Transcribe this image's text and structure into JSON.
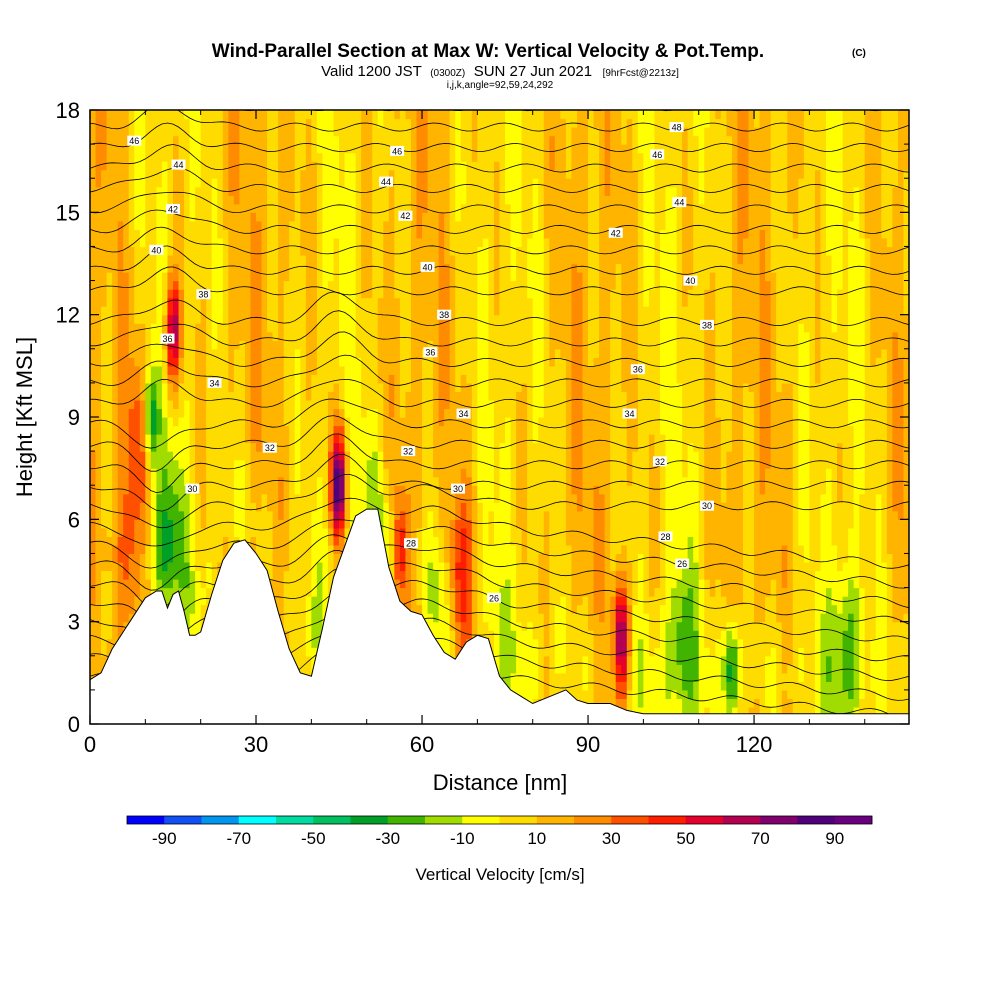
{
  "title": {
    "main": "Wind-Parallel Section at Max W: Vertical Velocity & Pot.Temp.",
    "copyright": "(C)",
    "valid_prefix": "Valid 1200 JST",
    "valid_utc": "(0300Z)",
    "valid_date": "SUN 27 Jun 2021",
    "forecast": "[9hrFcst@2213z]",
    "indices": "i,j,k,angle=92,59,24,292"
  },
  "chart_data": {
    "type": "heatmap",
    "xlabel": "Distance [nm]",
    "ylabel": "Height [Kft MSL]",
    "xlim": [
      0,
      148
    ],
    "ylim": [
      0,
      18
    ],
    "x_ticks": [
      "0",
      "30",
      "60",
      "90",
      "120"
    ],
    "y_ticks": [
      "0",
      "3",
      "6",
      "9",
      "12",
      "15",
      "18"
    ],
    "colorbar": {
      "label": "Vertical Velocity [cm/s]",
      "range": [
        -100,
        100
      ],
      "tick_labels": [
        "-90",
        "-70",
        "-50",
        "-30",
        "-10",
        "10",
        "30",
        "50",
        "70",
        "90"
      ],
      "colors": [
        "#0000ff",
        "#1050f5",
        "#0096f0",
        "#00ffff",
        "#00dca0",
        "#00c060",
        "#00a028",
        "#40b400",
        "#a0dc00",
        "#ffff00",
        "#ffdc00",
        "#ffb400",
        "#ff8c00",
        "#ff5000",
        "#ff1e00",
        "#e6002d",
        "#b40050",
        "#80006e",
        "#50007a",
        "#6a0080"
      ]
    },
    "terrain": [
      [
        0,
        1.3
      ],
      [
        2,
        1.5
      ],
      [
        4,
        2.2
      ],
      [
        6,
        2.7
      ],
      [
        8,
        3.2
      ],
      [
        10,
        3.7
      ],
      [
        12,
        3.9
      ],
      [
        13,
        3.9
      ],
      [
        14,
        3.4
      ],
      [
        15,
        3.8
      ],
      [
        16,
        3.9
      ],
      [
        17,
        3.3
      ],
      [
        18,
        2.6
      ],
      [
        19,
        2.6
      ],
      [
        20,
        2.7
      ],
      [
        22,
        3.8
      ],
      [
        24,
        4.8
      ],
      [
        26,
        5.3
      ],
      [
        28,
        5.4
      ],
      [
        30,
        5.0
      ],
      [
        32,
        4.5
      ],
      [
        34,
        3.3
      ],
      [
        36,
        2.2
      ],
      [
        38,
        1.5
      ],
      [
        40,
        1.4
      ],
      [
        42,
        2.8
      ],
      [
        44,
        4.3
      ],
      [
        46,
        5.2
      ],
      [
        48,
        6.1
      ],
      [
        50,
        6.3
      ],
      [
        52,
        6.3
      ],
      [
        54,
        4.6
      ],
      [
        56,
        3.6
      ],
      [
        58,
        3.3
      ],
      [
        60,
        3.2
      ],
      [
        62,
        2.6
      ],
      [
        64,
        2.1
      ],
      [
        66,
        1.9
      ],
      [
        68,
        2.4
      ],
      [
        70,
        2.6
      ],
      [
        72,
        2.5
      ],
      [
        74,
        1.4
      ],
      [
        76,
        1.0
      ],
      [
        78,
        0.8
      ],
      [
        80,
        0.6
      ],
      [
        83,
        0.8
      ],
      [
        86,
        1.0
      ],
      [
        88,
        0.7
      ],
      [
        90,
        0.6
      ],
      [
        94,
        0.6
      ],
      [
        97,
        0.4
      ],
      [
        100,
        0.3
      ],
      [
        148,
        0.3
      ]
    ],
    "w_features": [
      {
        "x": 11,
        "z": 9,
        "w": -55
      },
      {
        "x": 15,
        "z": 11.5,
        "w": 65
      },
      {
        "x": 45,
        "z": 7,
        "w": 90
      },
      {
        "x": 96,
        "z": 2.5,
        "w": 70
      },
      {
        "x": 116,
        "z": 1.5,
        "w": -50
      },
      {
        "x": 7,
        "z": 4.5,
        "w": 35
      },
      {
        "x": 56,
        "z": 5,
        "w": 45
      },
      {
        "x": 67,
        "z": 4,
        "w": 40
      },
      {
        "x": 9,
        "z": 8.5,
        "w": 30
      },
      {
        "x": 14,
        "z": 5.5,
        "w": -30
      },
      {
        "x": 53,
        "z": 4.5,
        "w": -20
      },
      {
        "x": 63,
        "z": 3.5,
        "w": -20
      },
      {
        "x": 107,
        "z": 2.5,
        "w": -25
      },
      {
        "x": 137,
        "z": 2.5,
        "w": -25
      }
    ],
    "theta_labels": [
      {
        "text": "46",
        "x": 8,
        "z": 17.1
      },
      {
        "text": "44",
        "x": 16,
        "z": 16.4
      },
      {
        "text": "42",
        "x": 15,
        "z": 15.1
      },
      {
        "text": "40",
        "x": 12,
        "z": 13.9
      },
      {
        "text": "38",
        "x": 20.5,
        "z": 12.6
      },
      {
        "text": "36",
        "x": 14,
        "z": 11.3
      },
      {
        "text": "34",
        "x": 22.5,
        "z": 10.0
      },
      {
        "text": "32",
        "x": 32.5,
        "z": 8.1
      },
      {
        "text": "30",
        "x": 18.5,
        "z": 6.9
      },
      {
        "text": "46",
        "x": 55.5,
        "z": 16.8
      },
      {
        "text": "44",
        "x": 53.5,
        "z": 15.9
      },
      {
        "text": "42",
        "x": 57,
        "z": 14.9
      },
      {
        "text": "40",
        "x": 61,
        "z": 13.4
      },
      {
        "text": "38",
        "x": 64,
        "z": 12.0
      },
      {
        "text": "36",
        "x": 61.5,
        "z": 10.9
      },
      {
        "text": "34",
        "x": 67.5,
        "z": 9.1
      },
      {
        "text": "32",
        "x": 57.5,
        "z": 8.0
      },
      {
        "text": "30",
        "x": 66.5,
        "z": 6.9
      },
      {
        "text": "28",
        "x": 58,
        "z": 5.3
      },
      {
        "text": "26",
        "x": 73,
        "z": 3.7
      },
      {
        "text": "48",
        "x": 106,
        "z": 17.5
      },
      {
        "text": "46",
        "x": 102.5,
        "z": 16.7
      },
      {
        "text": "44",
        "x": 106.5,
        "z": 15.3
      },
      {
        "text": "42",
        "x": 95,
        "z": 14.4
      },
      {
        "text": "40",
        "x": 108.5,
        "z": 13.0
      },
      {
        "text": "38",
        "x": 111.5,
        "z": 11.7
      },
      {
        "text": "36",
        "x": 99,
        "z": 10.4
      },
      {
        "text": "34",
        "x": 97.5,
        "z": 9.1
      },
      {
        "text": "32",
        "x": 103,
        "z": 7.7
      },
      {
        "text": "30",
        "x": 111.5,
        "z": 6.4
      },
      {
        "text": "28",
        "x": 104,
        "z": 5.5
      },
      {
        "text": "26",
        "x": 107,
        "z": 4.7
      }
    ]
  }
}
